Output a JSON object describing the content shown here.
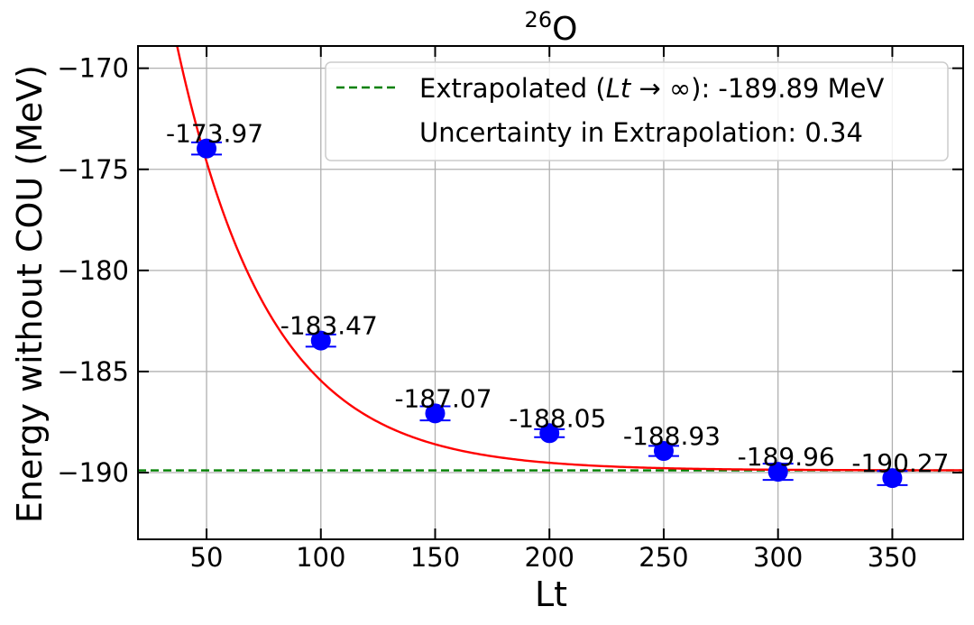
{
  "chart_data": {
    "type": "scatter",
    "title_element": "O",
    "title_superscript": "26",
    "xlabel": "Lt",
    "ylabel": "Energy without COU (MeV)",
    "xlim": [
      20,
      381
    ],
    "ylim": [
      -193.3,
      -168.9
    ],
    "xticks": [
      50,
      100,
      150,
      200,
      250,
      300,
      350
    ],
    "yticks": [
      -170,
      -175,
      -180,
      -185,
      -190
    ],
    "ytick_labels": [
      "−170",
      "−175",
      "−180",
      "−185",
      "−190"
    ],
    "grid": true,
    "legend_position": "top-right",
    "series": [
      {
        "kind": "points",
        "x": [
          50,
          100,
          150,
          200,
          250,
          300,
          350
        ],
        "y": [
          -173.97,
          -183.47,
          -187.07,
          -188.05,
          -188.93,
          -189.96,
          -190.27
        ],
        "error": [
          0.3,
          0.3,
          0.35,
          0.2,
          0.25,
          0.4,
          0.35
        ],
        "labels": [
          "-173.97",
          "-183.47",
          "-187.07",
          "-188.05",
          "-188.93",
          "-189.96",
          "-190.27"
        ],
        "color": "#0000ff"
      },
      {
        "kind": "fit-curve",
        "model": "exponential",
        "asymptote": -189.89,
        "amplitude": -52.5,
        "decay": 0.0247,
        "color": "#ff0000"
      },
      {
        "kind": "hline",
        "y": -189.89,
        "color": "#008000",
        "style": "dashed"
      }
    ],
    "legend": {
      "line1_prefix": "Extrapolated (",
      "line1_var": "Lt",
      "line1_arrow": " → ∞",
      "line1_suffix": "): -189.89 MeV",
      "line2": "Uncertainty in Extrapolation: 0.34"
    }
  }
}
